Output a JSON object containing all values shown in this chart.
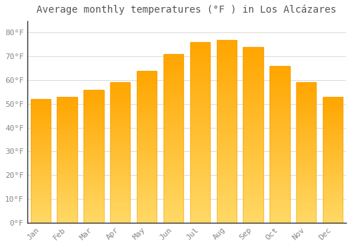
{
  "title": "Average monthly temperatures (°F ) in Los Alcázares",
  "months": [
    "Jan",
    "Feb",
    "Mar",
    "Apr",
    "May",
    "Jun",
    "Jul",
    "Aug",
    "Sep",
    "Oct",
    "Nov",
    "Dec"
  ],
  "values": [
    52,
    53,
    56,
    59,
    64,
    71,
    76,
    77,
    74,
    66,
    59,
    53
  ],
  "bar_color_top": "#FFA500",
  "bar_color_bottom": "#FFD580",
  "background_color": "#FFFFFF",
  "grid_color": "#DDDDDD",
  "text_color": "#888888",
  "spine_color": "#333333",
  "yticks": [
    0,
    10,
    20,
    30,
    40,
    50,
    60,
    70,
    80
  ],
  "ylim": [
    0,
    85
  ],
  "title_fontsize": 10,
  "tick_fontsize": 8,
  "font_family": "monospace"
}
